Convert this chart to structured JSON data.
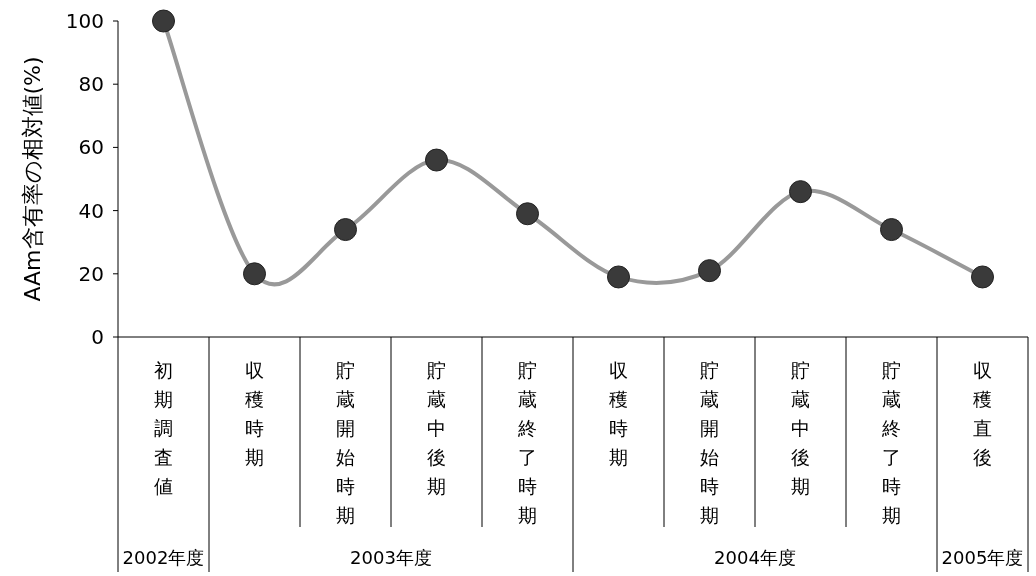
{
  "chart_data": {
    "type": "line",
    "ylabel": "AAm含有率の相対値(%)",
    "categories": [
      "初期調査値",
      "収穫時期",
      "貯蔵開始時期",
      "貯蔵中後期",
      "貯蔵終了時期",
      "収穫時期",
      "貯蔵開始時期",
      "貯蔵中後期",
      "貯蔵終了時期",
      "収穫直後"
    ],
    "series": [
      {
        "color": "#999999",
        "values": [
          100,
          20,
          34,
          56,
          39,
          19,
          21,
          46,
          34,
          19
        ]
      }
    ],
    "marker": "circle",
    "line_style": "solid",
    "ylim": [
      0,
      100
    ],
    "yticks": [
      0,
      20,
      40,
      60,
      80,
      100
    ],
    "grid": false,
    "annotations": [
      "2002年度",
      "2003年度",
      "2004年度",
      "2005年度"
    ]
  }
}
